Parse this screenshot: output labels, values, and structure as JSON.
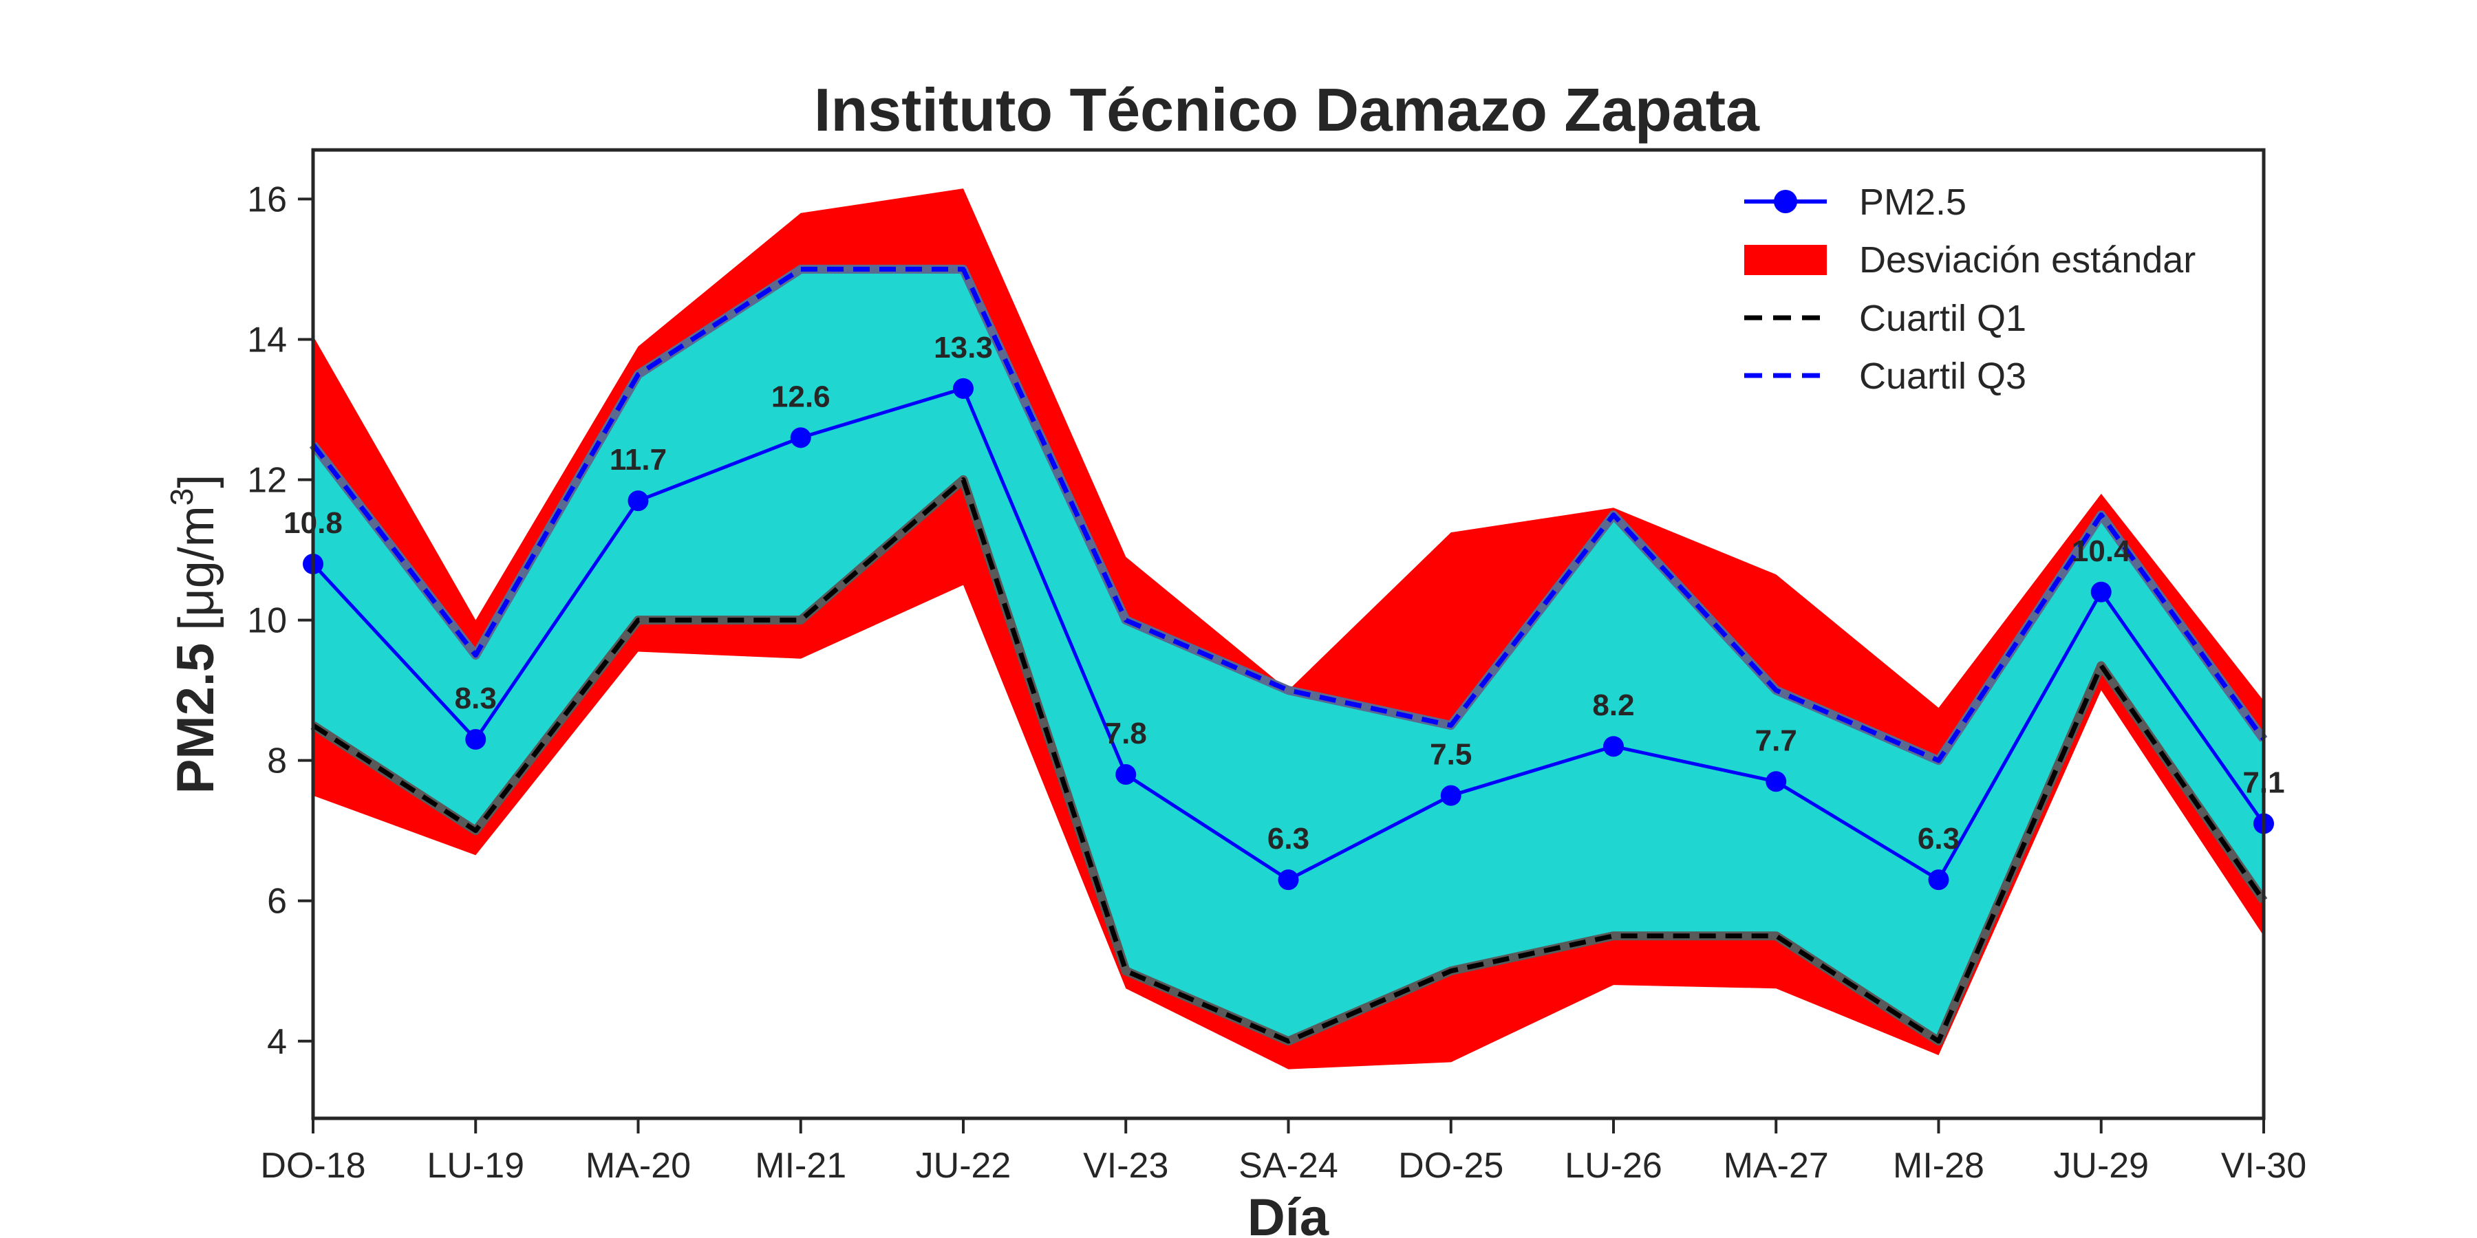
{
  "chart_data": {
    "type": "line",
    "title": "Instituto Técnico Damazo Zapata",
    "xlabel": "Día",
    "ylabel_main": "PM2.5",
    "ylabel_unit": "[μg/m",
    "ylabel_sup": "3",
    "ylabel_close": "]",
    "categories": [
      "DO-18",
      "LU-19",
      "MA-20",
      "MI-21",
      "JU-22",
      "VI-23",
      "SA-24",
      "DO-25",
      "LU-26",
      "MA-27",
      "MI-28",
      "JU-29",
      "VI-30"
    ],
    "yticks": [
      4,
      6,
      8,
      10,
      12,
      14,
      16
    ],
    "ylim": [
      2.9,
      16.7
    ],
    "series": [
      {
        "name": "PM2.5",
        "values": [
          10.8,
          8.3,
          11.7,
          12.6,
          13.3,
          7.8,
          6.3,
          7.5,
          8.2,
          7.7,
          6.3,
          10.4,
          7.1
        ],
        "color": "#0000ff"
      },
      {
        "name": "Cuartil Q1",
        "values": [
          8.5,
          7.0,
          10.0,
          10.0,
          12.0,
          5.0,
          4.0,
          5.0,
          5.5,
          5.5,
          4.0,
          9.35,
          6.0
        ],
        "color": "#000000"
      },
      {
        "name": "Cuartil Q3",
        "values": [
          12.5,
          9.5,
          13.5,
          15.0,
          15.0,
          10.0,
          9.0,
          8.5,
          11.5,
          9.0,
          8.0,
          11.5,
          8.3
        ],
        "color": "#0000ff"
      }
    ],
    "std_band": {
      "name": "Desviación estándar",
      "color": "#ff0000",
      "upper": [
        14.05,
        10.0,
        13.9,
        15.8,
        16.15,
        10.9,
        9.0,
        11.25,
        11.6,
        10.65,
        8.75,
        11.8,
        8.85
      ],
      "lower": [
        7.5,
        6.65,
        9.55,
        9.45,
        10.5,
        4.75,
        3.6,
        3.7,
        4.8,
        4.75,
        3.8,
        9.0,
        5.5
      ]
    },
    "iqr_fill_color": "#1fd6d0",
    "data_labels": [
      "10.8",
      "8.3",
      "11.7",
      "12.6",
      "13.3",
      "7.8",
      "6.3",
      "7.5",
      "8.2",
      "7.7",
      "6.3",
      "10.4",
      "7.1"
    ],
    "legend": {
      "placement": "top-right",
      "entries": [
        "PM2.5",
        "Desviación estándar",
        "Cuartil Q1",
        "Cuartil Q3"
      ]
    },
    "grid": false
  }
}
